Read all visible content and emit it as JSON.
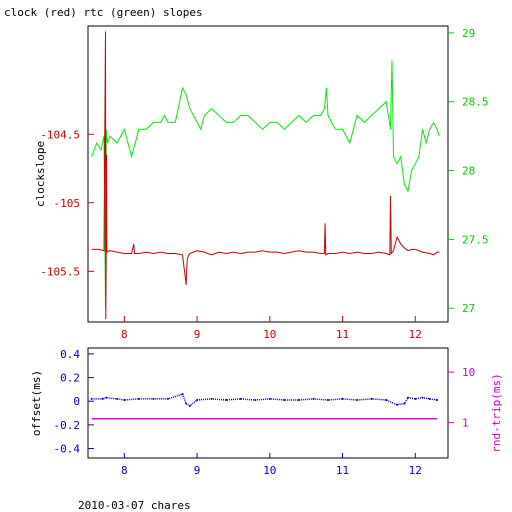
{
  "page": {
    "title": "clock (red) rtc (green) slopes",
    "footer": "2010-03-07 chares"
  },
  "chart_data": [
    {
      "type": "line",
      "title": "clock (red) rtc (green) slopes",
      "xlabel": "",
      "ylabel": "clockslope",
      "xlim": [
        7.5,
        12.45
      ],
      "x_ticks": [
        8,
        9,
        10,
        11,
        12
      ],
      "ylim": [
        -105.87,
        -103.71
      ],
      "y_ticks": [
        -104.5,
        -105,
        -105.5
      ],
      "y_tick_labels": [
        "-104.5",
        "-105",
        "-105.5"
      ],
      "y2lim": [
        26.9,
        29.05
      ],
      "y2_ticks": [
        27,
        27.5,
        28,
        28.5,
        29
      ],
      "y2_tick_labels": [
        "27",
        "27.5",
        "28",
        "28.5",
        "29"
      ],
      "grid": false,
      "colors": {
        "clock": "#cc0000",
        "rtc": "#00ee00",
        "frame": "#000000",
        "left_axis": "#cc0000",
        "right_axis": "#00cc00"
      },
      "series": [
        {
          "axis": "y2",
          "color": "#00ee00",
          "x": [
            7.55,
            7.62,
            7.68,
            7.72,
            7.74,
            7.75,
            7.77,
            7.8,
            7.9,
            8.0,
            8.1,
            8.2,
            8.3,
            8.4,
            8.5,
            8.55,
            8.6,
            8.7,
            8.8,
            8.85,
            8.9,
            8.95,
            9.0,
            9.05,
            9.1,
            9.2,
            9.3,
            9.4,
            9.5,
            9.6,
            9.7,
            9.8,
            9.9,
            10.0,
            10.1,
            10.2,
            10.3,
            10.4,
            10.5,
            10.6,
            10.7,
            10.75,
            10.78,
            10.8,
            10.9,
            11.0,
            11.1,
            11.2,
            11.3,
            11.4,
            11.5,
            11.6,
            11.66,
            11.68,
            11.7,
            11.75,
            11.8,
            11.85,
            11.9,
            11.95,
            12.0,
            12.05,
            12.1,
            12.15,
            12.2,
            12.25,
            12.3,
            12.33
          ],
          "values": [
            28.1,
            28.2,
            28.15,
            28.25,
            27.0,
            28.3,
            28.2,
            28.25,
            28.2,
            28.3,
            28.1,
            28.3,
            28.3,
            28.35,
            28.35,
            28.4,
            28.35,
            28.35,
            28.6,
            28.55,
            28.45,
            28.4,
            28.35,
            28.3,
            28.4,
            28.45,
            28.4,
            28.35,
            28.35,
            28.4,
            28.4,
            28.35,
            28.3,
            28.35,
            28.35,
            28.3,
            28.35,
            28.4,
            28.35,
            28.4,
            28.4,
            28.45,
            28.6,
            28.4,
            28.3,
            28.3,
            28.2,
            28.4,
            28.35,
            28.4,
            28.45,
            28.5,
            28.3,
            28.8,
            28.1,
            28.05,
            28.1,
            27.9,
            27.85,
            28.0,
            28.05,
            28.1,
            28.3,
            28.2,
            28.3,
            28.35,
            28.3,
            28.25
          ]
        },
        {
          "axis": "y",
          "color": "#cc0000",
          "x": [
            7.55,
            7.65,
            7.72,
            7.74,
            7.745,
            7.75,
            7.755,
            7.76,
            7.8,
            7.9,
            8.0,
            8.1,
            8.13,
            8.14,
            8.2,
            8.3,
            8.4,
            8.5,
            8.6,
            8.7,
            8.8,
            8.85,
            8.86,
            8.87,
            8.9,
            8.95,
            9.0,
            9.1,
            9.2,
            9.3,
            9.4,
            9.5,
            9.6,
            9.7,
            9.8,
            9.9,
            10.0,
            10.1,
            10.2,
            10.3,
            10.4,
            10.5,
            10.6,
            10.7,
            10.75,
            10.76,
            10.77,
            10.8,
            10.9,
            11.0,
            11.1,
            11.2,
            11.3,
            11.4,
            11.5,
            11.6,
            11.65,
            11.66,
            11.67,
            11.7,
            11.75,
            11.8,
            11.85,
            11.9,
            11.95,
            12.0,
            12.1,
            12.2,
            12.25,
            12.3,
            12.33
          ],
          "values": [
            -105.34,
            -105.34,
            -105.35,
            -103.75,
            -105.85,
            -105.36,
            -104.65,
            -105.36,
            -105.35,
            -105.36,
            -105.37,
            -105.37,
            -105.3,
            -105.37,
            -105.37,
            -105.36,
            -105.37,
            -105.36,
            -105.37,
            -105.37,
            -105.38,
            -105.6,
            -105.45,
            -105.4,
            -105.37,
            -105.36,
            -105.35,
            -105.36,
            -105.38,
            -105.36,
            -105.37,
            -105.36,
            -105.37,
            -105.36,
            -105.36,
            -105.35,
            -105.36,
            -105.36,
            -105.37,
            -105.36,
            -105.35,
            -105.36,
            -105.36,
            -105.37,
            -105.37,
            -105.15,
            -105.38,
            -105.37,
            -105.37,
            -105.36,
            -105.37,
            -105.36,
            -105.37,
            -105.37,
            -105.36,
            -105.37,
            -105.38,
            -104.95,
            -105.37,
            -105.35,
            -105.25,
            -105.3,
            -105.33,
            -105.35,
            -105.34,
            -105.34,
            -105.36,
            -105.37,
            -105.38,
            -105.36,
            -105.36
          ]
        }
      ]
    },
    {
      "type": "scatter",
      "xlabel": "",
      "ylabel": "offset(ms)",
      "y2label": "rnd-trip(ms)",
      "xlim": [
        7.5,
        12.45
      ],
      "x_ticks": [
        8,
        9,
        10,
        11,
        12
      ],
      "ylim": [
        -0.48,
        0.45
      ],
      "y_ticks": [
        0.4,
        0.2,
        0,
        -0.2,
        -0.4
      ],
      "y_tick_labels": [
        "0.4",
        "0.2",
        "0",
        "-0.2",
        "-0.4"
      ],
      "y2_scale": "log",
      "y2lim": [
        0.2,
        30
      ],
      "y2_ticks": [
        1,
        10
      ],
      "y2_tick_labels": [
        "1",
        "10"
      ],
      "grid": false,
      "colors": {
        "offset": "#0000cc",
        "rndtrip": "#ee00ee",
        "left_axis": "#0000cc",
        "right_axis": "#cc00cc"
      },
      "series": [
        {
          "axis": "y",
          "color": "#0000cc",
          "x": [
            7.55,
            7.7,
            7.75,
            7.9,
            8.0,
            8.2,
            8.4,
            8.6,
            8.8,
            8.85,
            8.9,
            9.0,
            9.2,
            9.4,
            9.6,
            9.8,
            10.0,
            10.2,
            10.4,
            10.6,
            10.8,
            11.0,
            11.2,
            11.4,
            11.6,
            11.75,
            11.85,
            11.9,
            12.0,
            12.1,
            12.2,
            12.3
          ],
          "values": [
            0.02,
            0.02,
            0.03,
            0.02,
            0.01,
            0.02,
            0.02,
            0.02,
            0.06,
            -0.02,
            -0.04,
            0.01,
            0.02,
            0.01,
            0.02,
            0.01,
            0.02,
            0.01,
            0.01,
            0.02,
            0.01,
            0.02,
            0.01,
            0.02,
            0.01,
            -0.03,
            -0.02,
            0.03,
            0.02,
            0.03,
            0.02,
            0.01
          ]
        },
        {
          "axis": "y2",
          "color": "#ee00ee",
          "x": [
            7.55,
            12.3
          ],
          "values": [
            1.2,
            1.2
          ]
        }
      ]
    }
  ]
}
